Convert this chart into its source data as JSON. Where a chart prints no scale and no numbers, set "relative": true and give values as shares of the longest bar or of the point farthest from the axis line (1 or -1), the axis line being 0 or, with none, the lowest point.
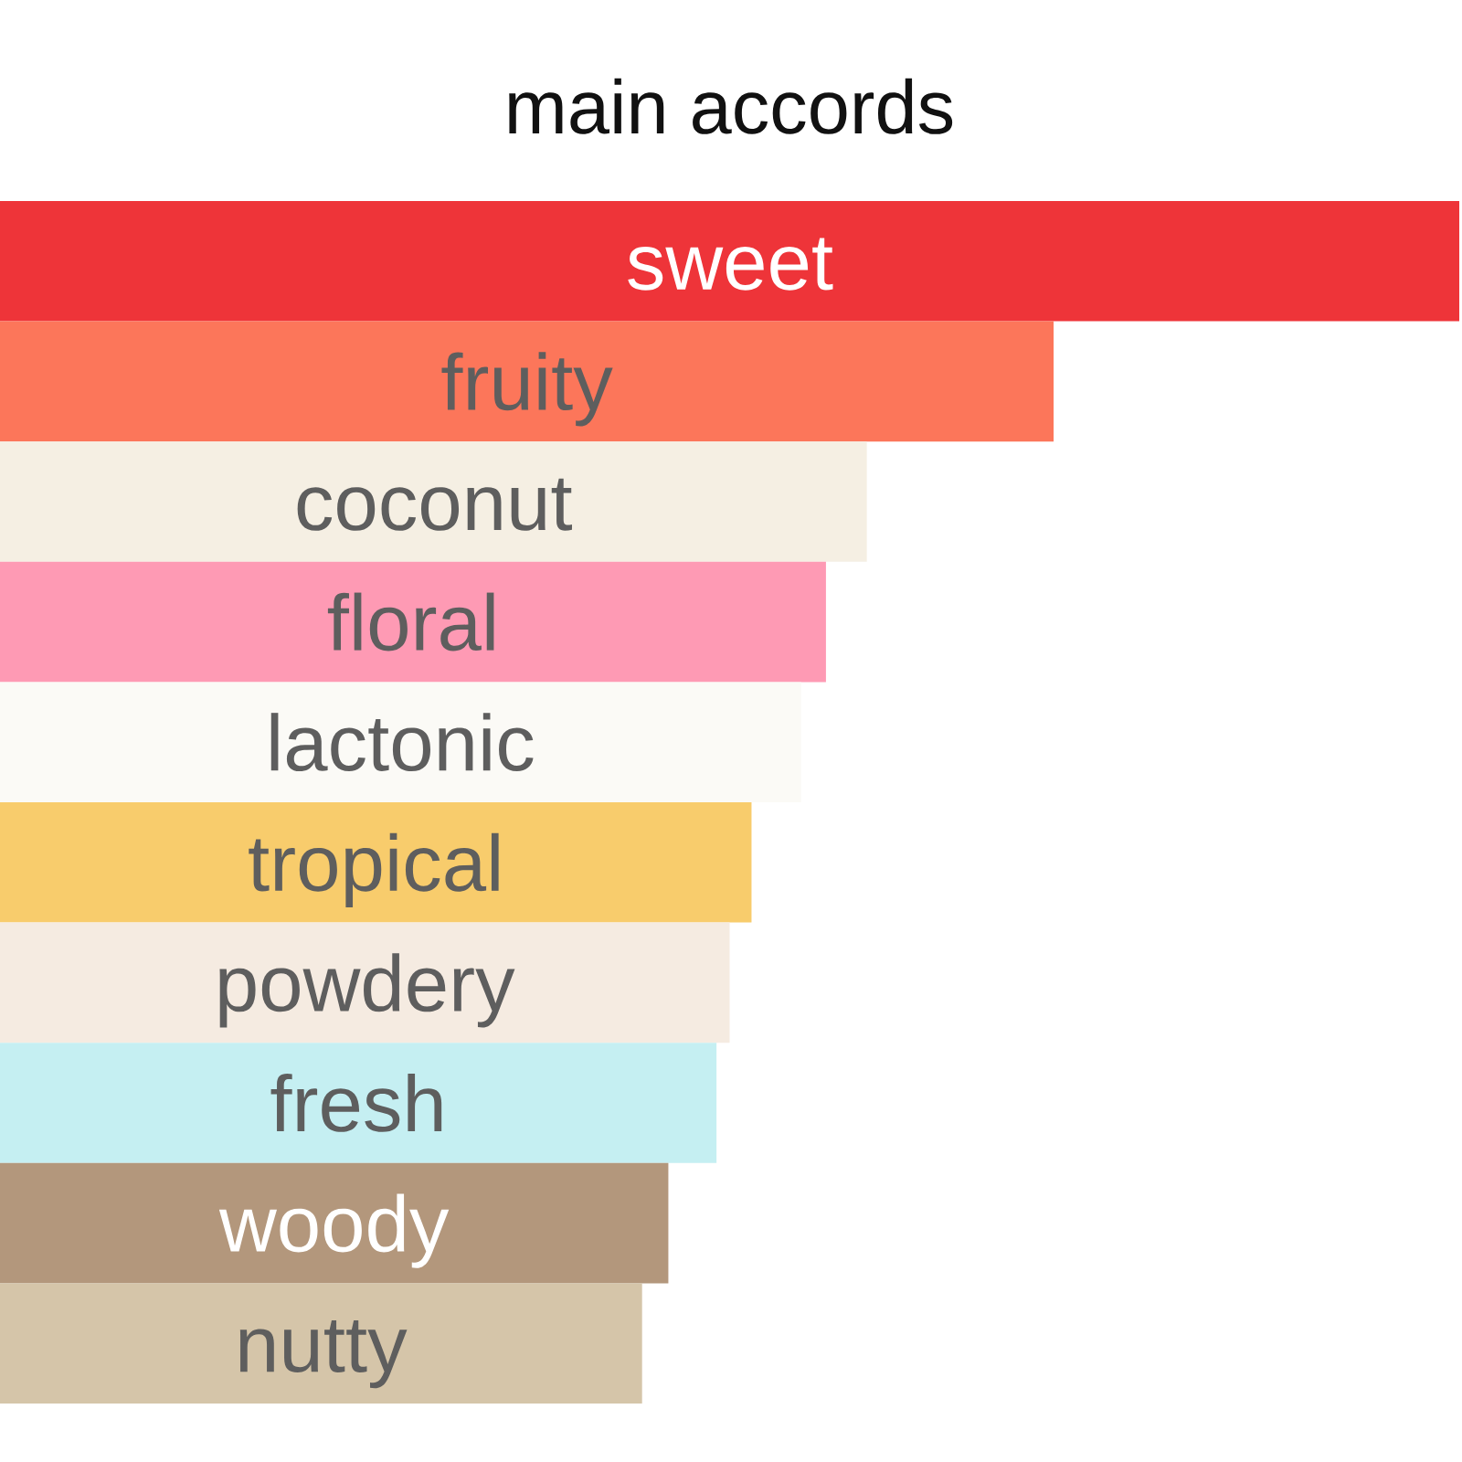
{
  "chart_data": {
    "type": "bar",
    "orientation": "horizontal",
    "relative": true,
    "title": "main accords",
    "categories": [
      "sweet",
      "fruity",
      "coconut",
      "floral",
      "lactonic",
      "tropical",
      "powdery",
      "fresh",
      "woody",
      "nutty"
    ],
    "values": [
      1.0,
      0.722,
      0.594,
      0.566,
      0.549,
      0.515,
      0.5,
      0.491,
      0.458,
      0.44
    ],
    "colors": [
      "#ee3439",
      "#fc765a",
      "#f5efe3",
      "#fe9ab4",
      "#fbfaf6",
      "#f8cc6c",
      "#f5ebe1",
      "#c5eff2",
      "#b3977c",
      "#d5c5a9"
    ]
  }
}
